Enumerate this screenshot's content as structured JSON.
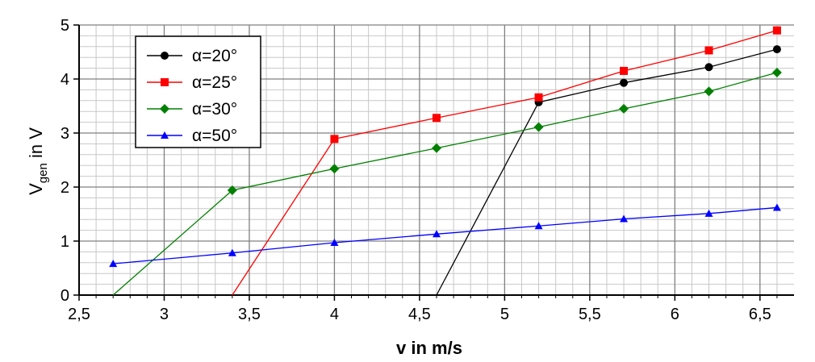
{
  "chart_data": {
    "type": "line",
    "xlabel": "v in m/s",
    "ylabel_main": "V",
    "ylabel_sub": "gen",
    "ylabel_suffix": " in V",
    "xlim": [
      2.5,
      6.7
    ],
    "ylim": [
      0,
      5
    ],
    "x_ticks": [
      2.5,
      3,
      3.5,
      4,
      4.5,
      5,
      5.5,
      6,
      6.5
    ],
    "x_tick_labels": [
      "2,5",
      "3",
      "3,5",
      "4",
      "4,5",
      "5",
      "5,5",
      "6",
      "6,5"
    ],
    "y_ticks": [
      0,
      1,
      2,
      3,
      4,
      5
    ],
    "y_tick_labels": [
      "0",
      "1",
      "2",
      "3",
      "4",
      "5"
    ],
    "grid": true,
    "legend_position": "top-left",
    "series": [
      {
        "name": "α=20°",
        "color": "#000000",
        "marker": "circle",
        "x": [
          4.6,
          5.2,
          5.7,
          6.2,
          6.6
        ],
        "y": [
          0,
          3.57,
          3.93,
          4.22,
          4.55
        ]
      },
      {
        "name": "α=25°",
        "color": "#ff0000",
        "marker": "square",
        "x": [
          3.4,
          4.0,
          4.6,
          5.2,
          5.7,
          6.2,
          6.6
        ],
        "y": [
          0,
          2.89,
          3.28,
          3.66,
          4.15,
          4.53,
          4.9
        ]
      },
      {
        "name": "α=30°",
        "color": "#008000",
        "marker": "diamond",
        "x": [
          2.7,
          3.4,
          4.0,
          4.6,
          5.2,
          5.7,
          6.2,
          6.6
        ],
        "y": [
          0,
          1.94,
          2.34,
          2.72,
          3.11,
          3.45,
          3.77,
          4.12
        ]
      },
      {
        "name": "α=50°",
        "color": "#0000ff",
        "marker": "triangle",
        "x": [
          2.7,
          3.4,
          4.0,
          4.6,
          5.2,
          5.7,
          6.2,
          6.6
        ],
        "y": [
          0.58,
          0.78,
          0.97,
          1.13,
          1.28,
          1.41,
          1.51,
          1.62
        ]
      }
    ]
  }
}
